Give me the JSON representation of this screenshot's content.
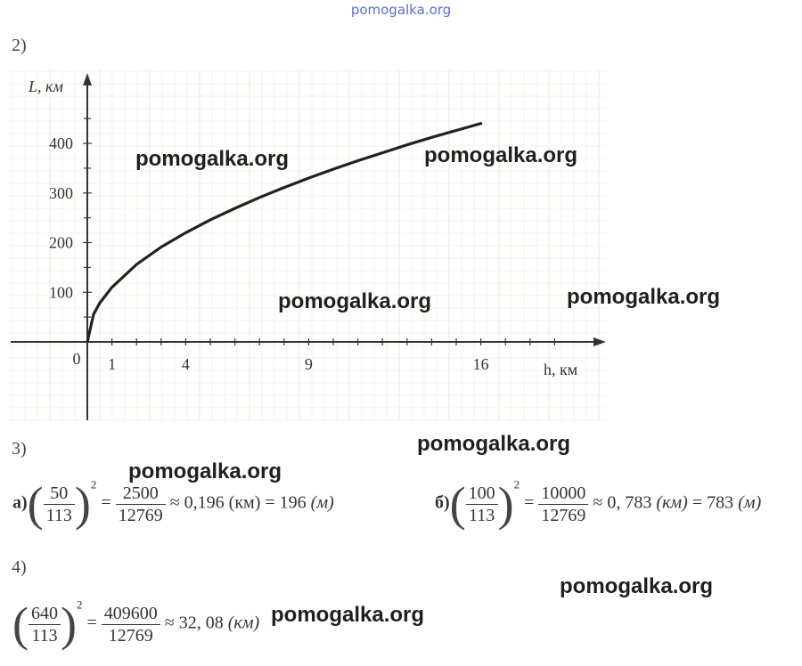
{
  "top_watermark": "pomogalka.org",
  "sections": {
    "s2": "2)",
    "s3": "3)",
    "s4": "4)"
  },
  "chart_data": {
    "type": "line",
    "function": "L = 110 * sqrt(h)",
    "x": [
      0,
      0.25,
      0.5,
      1,
      2,
      3,
      4,
      5,
      6,
      7,
      8,
      9,
      10,
      11,
      12,
      13,
      14,
      15,
      16
    ],
    "y": [
      0,
      55,
      78,
      110,
      156,
      191,
      220,
      246,
      269,
      291,
      311,
      330,
      348,
      365,
      381,
      397,
      412,
      426,
      440
    ],
    "xlabel": "h, км",
    "ylabel": "L, км",
    "xticks": [
      "1",
      "4",
      "9",
      "16"
    ],
    "yticks": [
      "100",
      "200",
      "300",
      "400"
    ],
    "origin_label": "0",
    "xlim": [
      -3,
      19.5
    ],
    "ylim": [
      -155,
      520
    ],
    "grid": true
  },
  "part3": {
    "a": {
      "label": "а)",
      "num": "50",
      "den": "113",
      "power": "2",
      "eq": "=",
      "frac_num": "2500",
      "frac_den": "12769",
      "approx": "≈ 0,196",
      "unit1": "(км)",
      "eq2": "= 196",
      "unit2": "(м)"
    },
    "b": {
      "label": "б)",
      "num": "100",
      "den": "113",
      "power": "2",
      "eq": "=",
      "frac_num": "10000",
      "frac_den": "12769",
      "approx": "≈ 0, 783",
      "unit1": "(км)",
      "eq2": "= 783",
      "unit2": "(м)"
    }
  },
  "part4": {
    "num": "640",
    "den": "113",
    "power": "2",
    "eq": "=",
    "frac_num": "409600",
    "frac_den": "12769",
    "approx": "≈ 32, 08",
    "unit": "(км)"
  },
  "watermarks": [
    "pomogalka.org",
    "pomogalka.org",
    "pomogalka.org",
    "pomogalka.org",
    "pomogalka.org",
    "pomogalka.org",
    "pomogalka.org",
    "pomogalka.org"
  ]
}
